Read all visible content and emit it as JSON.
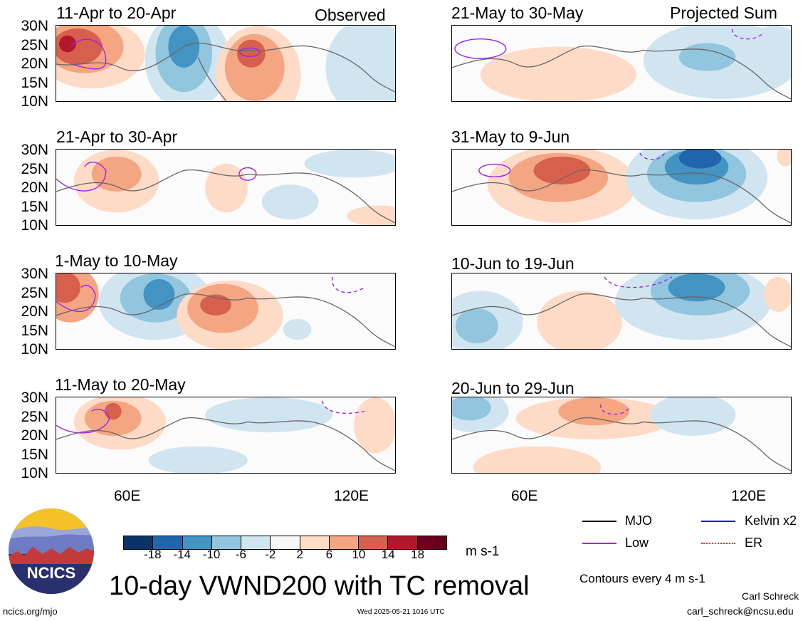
{
  "panels": [
    {
      "title": "11-Apr to 20-Apr",
      "tag": "Observed"
    },
    {
      "title": "21-Apr to 30-Apr",
      "tag": ""
    },
    {
      "title": "1-May to 10-May",
      "tag": ""
    },
    {
      "title": "11-May to 20-May",
      "tag": ""
    },
    {
      "title": "21-May to 30-May",
      "tag": "Projected Sum"
    },
    {
      "title": "31-May to 9-Jun",
      "tag": ""
    },
    {
      "title": "10-Jun to 19-Jun",
      "tag": ""
    },
    {
      "title": "20-Jun to 29-Jun",
      "tag": ""
    }
  ],
  "lat_labels": [
    "30N",
    "25N",
    "20N",
    "15N",
    "10N"
  ],
  "lon_labels": [
    "60E",
    "120E"
  ],
  "colorbar": {
    "colors": [
      "#0a3466",
      "#2166ac",
      "#4393c3",
      "#92c5de",
      "#d1e5f0",
      "#f7f7f7",
      "#fddbc7",
      "#f4a582",
      "#d6604d",
      "#b2182b",
      "#67001f"
    ],
    "labels": [
      "-18",
      "-14",
      "-10",
      "-6",
      "-2",
      "2",
      "6",
      "10",
      "14",
      "18"
    ],
    "units": "m s-1"
  },
  "legend": {
    "mjo": "MJO",
    "kelvin": "Kelvin x2",
    "low": "Low",
    "er": "ER",
    "colors": {
      "mjo": "#000000",
      "kelvin": "#0000ff",
      "low": "#a020f0",
      "er": "#ff0000"
    }
  },
  "main_title": "10-day VWND200 with TC removal",
  "contour_note": "Contours every 4 m s-1",
  "author": "Carl Schreck",
  "email": "carl_schreck@ncsu.edu",
  "site": "ncics.org/mjo",
  "timestamp": "Wed 2025-05-21 1016 UTC",
  "logo_text": "NCICS"
}
